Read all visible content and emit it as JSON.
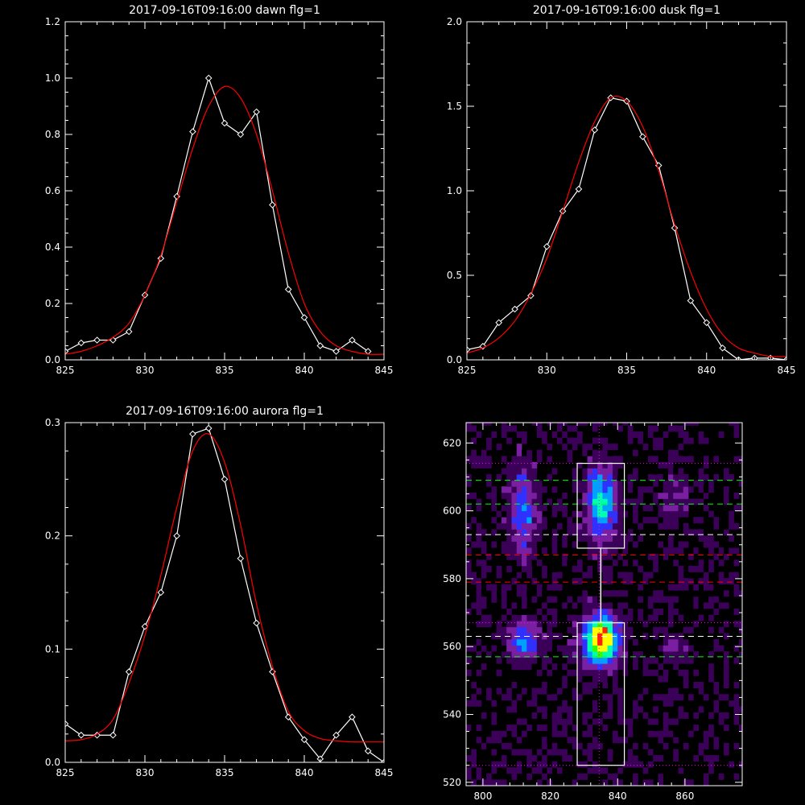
{
  "chart_data": [
    {
      "id": "dawn",
      "type": "line",
      "title": "2017-09-16T09:16:00 dawn flg=1",
      "xlim": [
        825,
        845
      ],
      "ylim": [
        0,
        1.2
      ],
      "xticks": [
        "825",
        "830",
        "835",
        "840",
        "845"
      ],
      "yticks": [
        "0.0",
        "0.2",
        "0.4",
        "0.6",
        "0.8",
        "1.0",
        "1.2"
      ],
      "series": [
        {
          "style": "data",
          "color": "#ffffff",
          "x": [
            825,
            826,
            827,
            828,
            829,
            830,
            831,
            832,
            833,
            834,
            835,
            836,
            837,
            838,
            839,
            840,
            841,
            842,
            843,
            844
          ],
          "y": [
            0.03,
            0.06,
            0.07,
            0.07,
            0.1,
            0.23,
            0.36,
            0.58,
            0.81,
            1.0,
            0.84,
            0.8,
            0.88,
            0.55,
            0.25,
            0.15,
            0.05,
            0.03,
            0.07,
            0.03
          ]
        },
        {
          "style": "fit",
          "color": "#ff0000",
          "x": [
            825,
            826,
            827,
            828,
            829,
            830,
            831,
            832,
            833,
            834,
            835,
            836,
            837,
            838,
            839,
            840,
            841,
            842,
            843,
            844,
            845
          ],
          "y": [
            0.02,
            0.03,
            0.05,
            0.08,
            0.13,
            0.23,
            0.37,
            0.56,
            0.75,
            0.9,
            0.97,
            0.93,
            0.8,
            0.6,
            0.38,
            0.2,
            0.1,
            0.05,
            0.03,
            0.02,
            0.02
          ]
        }
      ]
    },
    {
      "id": "dusk",
      "type": "line",
      "title": "2017-09-16T09:16:00 dusk flg=1",
      "xlim": [
        825,
        845
      ],
      "ylim": [
        0,
        2.0
      ],
      "xticks": [
        "825",
        "830",
        "835",
        "840",
        "845"
      ],
      "yticks": [
        "0.0",
        "0.5",
        "1.0",
        "1.5",
        "2.0"
      ],
      "series": [
        {
          "style": "data",
          "color": "#ffffff",
          "x": [
            825,
            826,
            827,
            828,
            829,
            830,
            831,
            832,
            833,
            834,
            835,
            836,
            837,
            838,
            839,
            840,
            841,
            842,
            843,
            844,
            845
          ],
          "y": [
            0.06,
            0.08,
            0.22,
            0.3,
            0.38,
            0.67,
            0.88,
            1.01,
            1.36,
            1.55,
            1.53,
            1.32,
            1.15,
            0.78,
            0.35,
            0.22,
            0.07,
            0.0,
            0.01,
            0.01,
            0.0
          ]
        },
        {
          "style": "fit",
          "color": "#ff0000",
          "x": [
            825,
            826,
            827,
            828,
            829,
            830,
            831,
            832,
            833,
            834,
            835,
            836,
            837,
            838,
            839,
            840,
            841,
            842,
            843,
            844,
            845
          ],
          "y": [
            0.04,
            0.07,
            0.13,
            0.23,
            0.39,
            0.6,
            0.88,
            1.17,
            1.41,
            1.55,
            1.53,
            1.38,
            1.12,
            0.8,
            0.52,
            0.3,
            0.15,
            0.07,
            0.04,
            0.02,
            0.02
          ]
        }
      ]
    },
    {
      "id": "aurora",
      "type": "line",
      "title": "2017-09-16T09:16:00 aurora flg=1",
      "xlim": [
        825,
        845
      ],
      "ylim": [
        0,
        0.3
      ],
      "xticks": [
        "825",
        "830",
        "835",
        "840",
        "845"
      ],
      "yticks": [
        "0.0",
        "0.1",
        "0.2",
        "0.3"
      ],
      "series": [
        {
          "style": "data",
          "color": "#ffffff",
          "x": [
            825,
            826,
            827,
            828,
            829,
            830,
            831,
            832,
            833,
            834,
            835,
            836,
            837,
            838,
            839,
            840,
            841,
            842,
            843,
            844,
            845
          ],
          "y": [
            0.034,
            0.024,
            0.024,
            0.024,
            0.08,
            0.12,
            0.15,
            0.2,
            0.29,
            0.295,
            0.25,
            0.18,
            0.123,
            0.08,
            0.04,
            0.02,
            0.003,
            0.024,
            0.04,
            0.01,
            0.0
          ]
        },
        {
          "style": "fit",
          "color": "#ff0000",
          "x": [
            825,
            826,
            827,
            828,
            829,
            830,
            831,
            832,
            833,
            834,
            835,
            836,
            837,
            838,
            839,
            840,
            841,
            842,
            843,
            844,
            845
          ],
          "y": [
            0.019,
            0.02,
            0.025,
            0.038,
            0.07,
            0.112,
            0.165,
            0.225,
            0.275,
            0.29,
            0.265,
            0.21,
            0.14,
            0.085,
            0.045,
            0.028,
            0.021,
            0.019,
            0.018,
            0.018,
            0.018
          ]
        }
      ]
    },
    {
      "id": "spectral-image",
      "type": "heatmap",
      "title": "",
      "xlim": [
        795,
        877
      ],
      "ylim": [
        519,
        626
      ],
      "xticks": [
        "800",
        "820",
        "840",
        "860"
      ],
      "yticks": [
        "520",
        "540",
        "560",
        "580",
        "600",
        "620"
      ],
      "colormap": [
        "#000000",
        "#3b0058",
        "#7a1fa2",
        "#3030ff",
        "#00a0ff",
        "#00ffb0",
        "#30ff00",
        "#ffff00",
        "#ff2000"
      ],
      "hotspots": [
        {
          "x": 835,
          "y": 562,
          "sx": 3.5,
          "sy": 5,
          "amp": 1.0
        },
        {
          "x": 835,
          "y": 602,
          "sx": 3,
          "sy": 8,
          "amp": 0.55
        },
        {
          "x": 812,
          "y": 562,
          "sx": 3,
          "sy": 4,
          "amp": 0.45
        },
        {
          "x": 812,
          "y": 600,
          "sx": 3,
          "sy": 9,
          "amp": 0.35
        },
        {
          "x": 857,
          "y": 560,
          "sx": 2.5,
          "sy": 3,
          "amp": 0.22
        },
        {
          "x": 857,
          "y": 605,
          "sx": 3,
          "sy": 5,
          "amp": 0.15
        }
      ],
      "boxes": [
        {
          "x0": 828,
          "x1": 842,
          "y0": 589,
          "y1": 614
        },
        {
          "x0": 828,
          "x1": 842,
          "y0": 525,
          "y1": 567
        }
      ],
      "vline": {
        "x": 834.5,
        "color": "#ff00ff"
      },
      "center_line": {
        "x": 835,
        "y0": 567,
        "y1": 589,
        "color": "#ffffff"
      },
      "hlines": [
        {
          "y": 614,
          "style": "dotted",
          "color": "#ff00ff"
        },
        {
          "y": 609,
          "style": "dashed",
          "color": "#00ff00"
        },
        {
          "y": 602,
          "style": "dashed",
          "color": "#00ff00"
        },
        {
          "y": 593,
          "style": "dashed",
          "color": "#ffffff"
        },
        {
          "y": 587,
          "style": "dashed",
          "color": "#ff0000"
        },
        {
          "y": 579,
          "style": "dashed",
          "color": "#ff0000"
        },
        {
          "y": 567,
          "style": "dotted",
          "color": "#ff00ff"
        },
        {
          "y": 563,
          "style": "dashed",
          "color": "#ffffff"
        },
        {
          "y": 557,
          "style": "dashed",
          "color": "#00ff00"
        },
        {
          "y": 525,
          "style": "dotted",
          "color": "#ff00ff"
        }
      ]
    }
  ]
}
